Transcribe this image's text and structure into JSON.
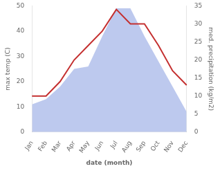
{
  "chart_data": {
    "type": "line",
    "xlabel": "date (month)",
    "ylabel": "max temp (C)",
    "y2label": "med. precipitation (kg/m2)",
    "categories": [
      "Jan",
      "Feb",
      "Mar",
      "Apr",
      "May",
      "Jun",
      "Jul",
      "Aug",
      "Sep",
      "Oct",
      "Nov",
      "Dec"
    ],
    "series": [
      {
        "type": "area",
        "color": "#bdc9ee",
        "values": [
          11,
          13,
          18,
          25,
          26,
          38,
          49,
          49,
          38,
          28,
          18,
          8
        ]
      },
      {
        "type": "line",
        "color": "#c43030",
        "axis": "y2",
        "values": [
          10,
          10,
          14,
          20,
          24,
          28,
          34,
          30,
          30,
          24,
          17,
          13
        ]
      }
    ],
    "ylim": [
      0,
      50
    ],
    "yticks": [
      0,
      10,
      20,
      30,
      40,
      50
    ],
    "y2lim": [
      0,
      35
    ],
    "y2ticks": [
      0,
      5,
      10,
      15,
      20,
      25,
      30,
      35
    ],
    "grid": false
  }
}
